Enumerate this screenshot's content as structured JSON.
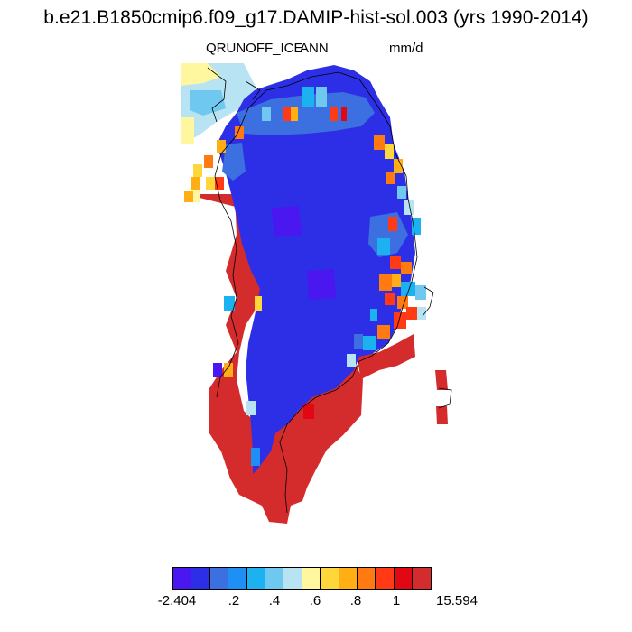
{
  "title": "b.e21.B1850cmip6.f09_g17.DAMIP-hist-sol.003 (yrs 1990-2014)",
  "variable": "QRUNOFF_ICE",
  "season": "ANN",
  "units": "mm/d",
  "colorbar": {
    "colors": [
      "#4a17f0",
      "#2d2fe6",
      "#3c6fe0",
      "#1e90f5",
      "#1cb2f2",
      "#6ec8f0",
      "#b8e3f2",
      "#fff6a0",
      "#ffd73a",
      "#ffae14",
      "#ff7a10",
      "#ff3a14",
      "#e00812",
      "#d42c2c"
    ],
    "tick_labels": [
      "-2.404",
      ".2",
      ".4",
      ".6",
      ".8",
      "1",
      "15.594"
    ]
  }
}
